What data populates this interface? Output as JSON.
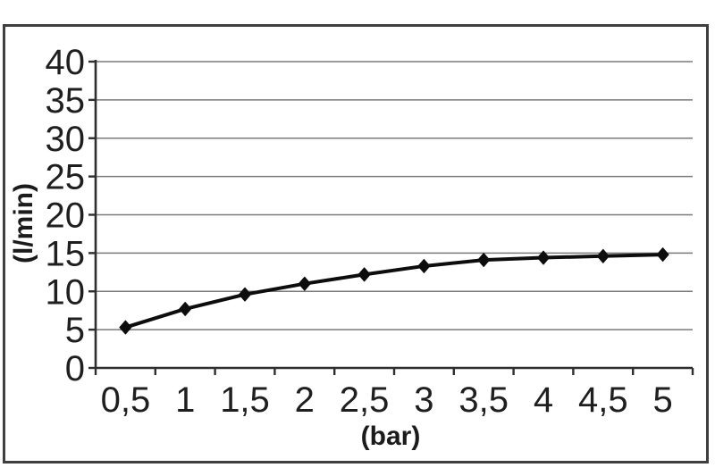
{
  "chart_data": {
    "type": "line",
    "title": "",
    "xlabel": "(bar)",
    "ylabel": "(l/min)",
    "x": [
      0.5,
      1,
      1.5,
      2,
      2.5,
      3,
      3.5,
      4,
      4.5,
      5
    ],
    "categories": [
      "0,5",
      "1",
      "1,5",
      "2",
      "2,5",
      "3",
      "3,5",
      "4",
      "4,5",
      "5"
    ],
    "values": [
      5.3,
      7.7,
      9.6,
      11.0,
      12.2,
      13.3,
      14.1,
      14.4,
      14.6,
      14.8
    ],
    "ylim": [
      0,
      40
    ],
    "ytick_step": 5,
    "yticks": [
      "0",
      "5",
      "10",
      "15",
      "20",
      "25",
      "30",
      "35",
      "40"
    ],
    "grid": "horizontal gridlines on",
    "legend_position": "none",
    "marker": "diamond",
    "colors": {
      "line": "#0d0d0d",
      "marker": "#0d0d0d",
      "gridline": "#7a7a7a",
      "axis": "#2e2e2e",
      "tick_text": "#1f1f1f",
      "frame_border": "#3f3f3f",
      "background": "#ffffff"
    }
  }
}
